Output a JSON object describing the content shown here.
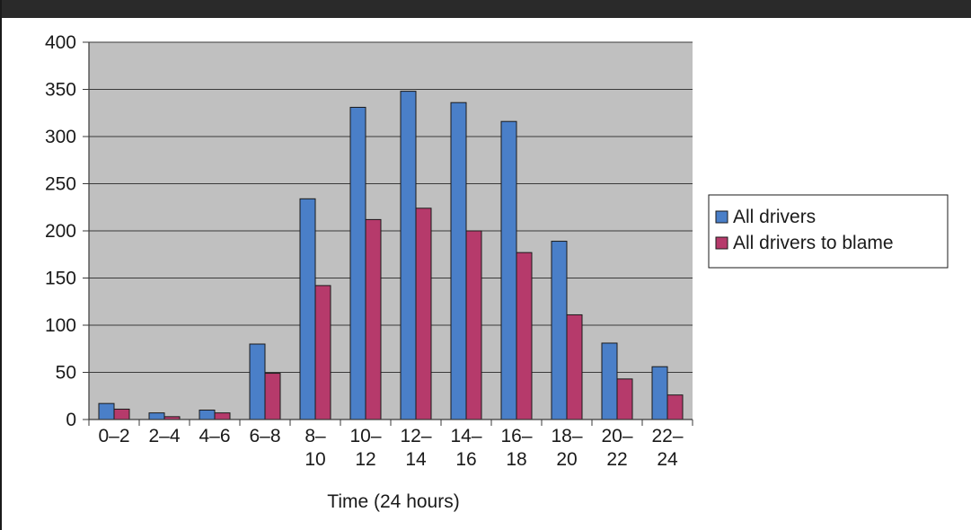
{
  "chart_data": {
    "type": "bar",
    "categories": [
      [
        "0–2"
      ],
      [
        "2–4"
      ],
      [
        "4–6"
      ],
      [
        "6–8"
      ],
      [
        "8–",
        "10"
      ],
      [
        "10–",
        "12"
      ],
      [
        "12–",
        "14"
      ],
      [
        "14–",
        "16"
      ],
      [
        "16–",
        "18"
      ],
      [
        "18–",
        "20"
      ],
      [
        "20–",
        "22"
      ],
      [
        "22–",
        "24"
      ]
    ],
    "series": [
      {
        "name": "All drivers",
        "color": "#4a7fc8",
        "values": [
          17,
          7,
          10,
          80,
          234,
          331,
          348,
          336,
          316,
          189,
          81,
          56
        ]
      },
      {
        "name": "All drivers to blame",
        "color": "#b63a6b",
        "values": [
          11,
          3,
          7,
          49,
          142,
          212,
          224,
          200,
          177,
          111,
          43,
          26
        ]
      }
    ],
    "xlabel": "Time (24 hours)",
    "ylabel": "",
    "ylim": [
      0,
      400
    ],
    "yticks": [
      0,
      50,
      100,
      150,
      200,
      250,
      300,
      350,
      400
    ],
    "grid": true,
    "plot_background": "#c0c0c0",
    "legend_position": "right"
  }
}
